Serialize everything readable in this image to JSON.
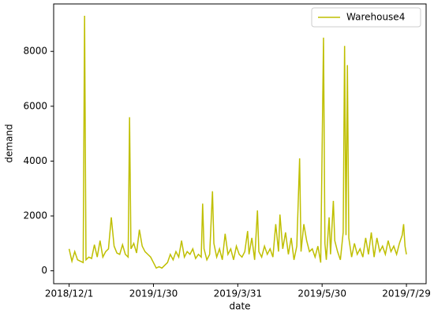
{
  "chart_data": {
    "type": "line",
    "x_label": "date",
    "y_label": "demand",
    "x": [
      "2018/12/1",
      "2018/12/3",
      "2018/12/5",
      "2018/12/7",
      "2018/12/9",
      "2018/12/11",
      "2018/12/12",
      "2018/12/13",
      "2018/12/15",
      "2018/12/17",
      "2018/12/19",
      "2018/12/21",
      "2018/12/23",
      "2018/12/25",
      "2018/12/27",
      "2018/12/29",
      "2018/12/31",
      "2019/1/2",
      "2019/1/4",
      "2019/1/6",
      "2019/1/8",
      "2019/1/10",
      "2019/1/12",
      "2019/1/13",
      "2019/1/14",
      "2019/1/16",
      "2019/1/18",
      "2019/1/20",
      "2019/1/22",
      "2019/1/24",
      "2019/1/26",
      "2019/1/28",
      "2019/1/30",
      "2019/2/1",
      "2019/2/3",
      "2019/2/5",
      "2019/2/7",
      "2019/2/9",
      "2019/2/11",
      "2019/2/13",
      "2019/2/15",
      "2019/2/17",
      "2019/2/19",
      "2019/2/21",
      "2019/2/23",
      "2019/2/25",
      "2019/2/27",
      "2019/3/1",
      "2019/3/3",
      "2019/3/5",
      "2019/3/6",
      "2019/3/7",
      "2019/3/9",
      "2019/3/11",
      "2019/3/13",
      "2019/3/14",
      "2019/3/16",
      "2019/3/18",
      "2019/3/20",
      "2019/3/22",
      "2019/3/24",
      "2019/3/26",
      "2019/3/28",
      "2019/3/30",
      "2019/4/1",
      "2019/4/3",
      "2019/4/5",
      "2019/4/7",
      "2019/4/8",
      "2019/4/10",
      "2019/4/12",
      "2019/4/14",
      "2019/4/15",
      "2019/4/17",
      "2019/4/19",
      "2019/4/21",
      "2019/4/23",
      "2019/4/25",
      "2019/4/27",
      "2019/4/29",
      "2019/4/30",
      "2019/5/2",
      "2019/5/4",
      "2019/5/6",
      "2019/5/8",
      "2019/5/10",
      "2019/5/12",
      "2019/5/14",
      "2019/5/15",
      "2019/5/17",
      "2019/5/19",
      "2019/5/21",
      "2019/5/23",
      "2019/5/25",
      "2019/5/27",
      "2019/5/29",
      "2019/5/31",
      "2019/6/1",
      "2019/6/2",
      "2019/6/4",
      "2019/6/5",
      "2019/6/7",
      "2019/6/8",
      "2019/6/10",
      "2019/6/12",
      "2019/6/14",
      "2019/6/15",
      "2019/6/16",
      "2019/6/17",
      "2019/6/18",
      "2019/6/20",
      "2019/6/22",
      "2019/6/24",
      "2019/6/26",
      "2019/6/28",
      "2019/6/30",
      "2019/7/2",
      "2019/7/4",
      "2019/7/6",
      "2019/7/8",
      "2019/7/10",
      "2019/7/12",
      "2019/7/14",
      "2019/7/16",
      "2019/7/18",
      "2019/7/20",
      "2019/7/22",
      "2019/7/24",
      "2019/7/26",
      "2019/7/27",
      "2019/7/28",
      "2019/7/29"
    ],
    "series": [
      {
        "name": "Warehouse4",
        "color": "#bfbf00",
        "values": [
          800,
          350,
          700,
          400,
          350,
          300,
          9300,
          400,
          500,
          450,
          950,
          500,
          1100,
          500,
          700,
          800,
          1950,
          900,
          650,
          600,
          950,
          600,
          500,
          5600,
          800,
          1000,
          650,
          1500,
          900,
          700,
          600,
          500,
          300,
          100,
          150,
          100,
          200,
          300,
          600,
          400,
          700,
          500,
          1100,
          500,
          700,
          600,
          800,
          450,
          600,
          500,
          2450,
          800,
          400,
          600,
          2900,
          1000,
          500,
          800,
          400,
          1350,
          600,
          800,
          400,
          900,
          600,
          500,
          700,
          1450,
          600,
          1200,
          400,
          2200,
          700,
          500,
          900,
          600,
          800,
          500,
          1700,
          700,
          2050,
          800,
          1400,
          600,
          1200,
          400,
          900,
          4100,
          700,
          1700,
          1100,
          700,
          800,
          500,
          900,
          300,
          8500,
          1000,
          400,
          1950,
          600,
          2550,
          1100,
          700,
          400,
          1400,
          8200,
          1300,
          7500,
          1200,
          500,
          1000,
          600,
          800,
          500,
          1200,
          600,
          1400,
          500,
          1200,
          700,
          900,
          600,
          1100,
          700,
          900,
          600,
          1000,
          1300,
          1700,
          900,
          600
        ]
      }
    ],
    "xlim": [
      "2018/11/20",
      "2019/8/12"
    ],
    "xticks": [
      "2018/12/1",
      "2019/1/30",
      "2019/3/31",
      "2019/5/30",
      "2019/7/29"
    ],
    "ylim": [
      -470,
      9730
    ],
    "yticks": [
      0,
      2000,
      4000,
      6000,
      8000
    ],
    "legend": "upper right",
    "grid": false
  }
}
